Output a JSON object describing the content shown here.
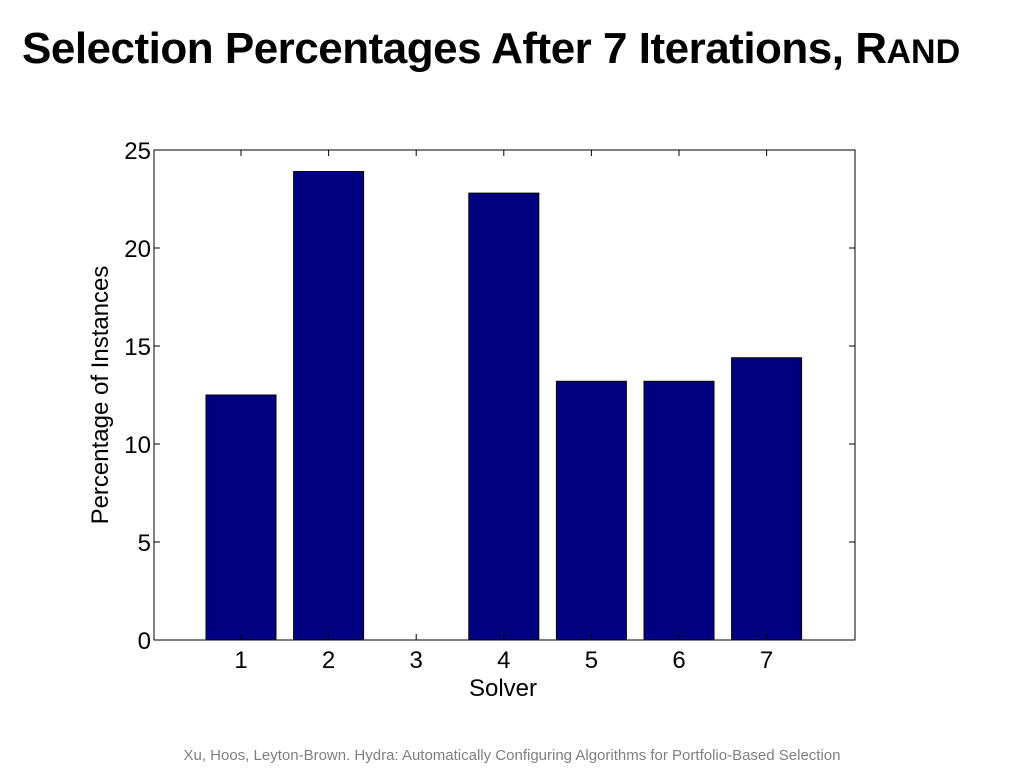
{
  "slide": {
    "title_main": "Selection Percentages After 7 Iterations, R",
    "title_caps": "AND",
    "footer": "Xu, Hoos, Leyton-Brown. Hydra: Automatically Configuring Algorithms for Portfolio-Based Selection"
  },
  "chart_data": {
    "type": "bar",
    "title": "",
    "xlabel": "Solver",
    "ylabel": "Percentage of Instances",
    "categories": [
      "1",
      "2",
      "3",
      "4",
      "5",
      "6",
      "7"
    ],
    "values": [
      12.5,
      23.9,
      0,
      22.8,
      13.2,
      13.2,
      14.4
    ],
    "ylim": [
      0,
      25
    ],
    "yticks": [
      0,
      5,
      10,
      15,
      20,
      25
    ],
    "bar_color": "#000080",
    "grid": false,
    "legend": "none"
  }
}
